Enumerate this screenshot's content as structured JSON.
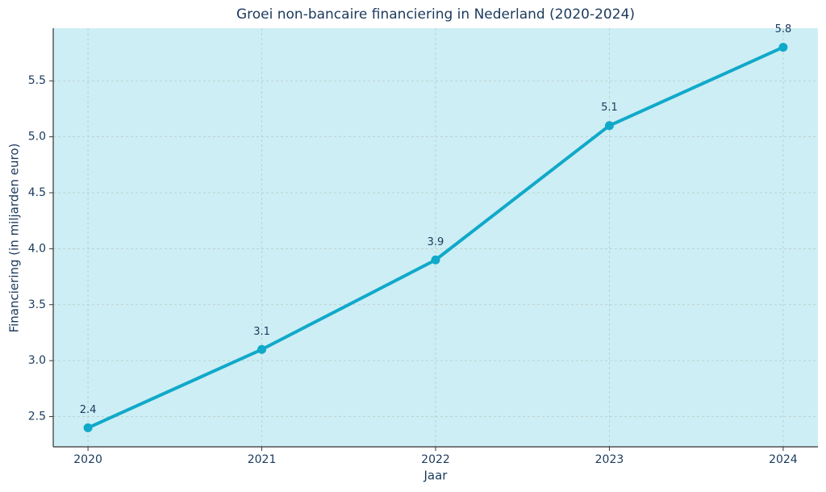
{
  "chart_data": {
    "type": "line",
    "title": "Groei non-bancaire financiering in Nederland (2020-2024)",
    "x_label": "Jaar",
    "y_label": "Financiering (in miljarden euro)",
    "x": [
      2020,
      2021,
      2022,
      2023,
      2024
    ],
    "series": [
      {
        "name": "Financiering",
        "color": "#10a9c9",
        "values": [
          2.4,
          3.1,
          3.9,
          5.1,
          5.8
        ]
      }
    ],
    "xlim": [
      2019.8,
      2024.2
    ],
    "xticks": [
      2020,
      2021,
      2022,
      2023,
      2024
    ],
    "ylim": [
      2.23,
      5.97
    ],
    "yticks": [
      2.5,
      {
        "value": 3,
        "label": "3.0"
      },
      3.5,
      {
        "value": 4,
        "label": "4.0"
      },
      4.5,
      {
        "value": 5,
        "label": "5.0"
      },
      5.5
    ],
    "grid": true,
    "background": "#cdeef5",
    "data_labels": true
  }
}
